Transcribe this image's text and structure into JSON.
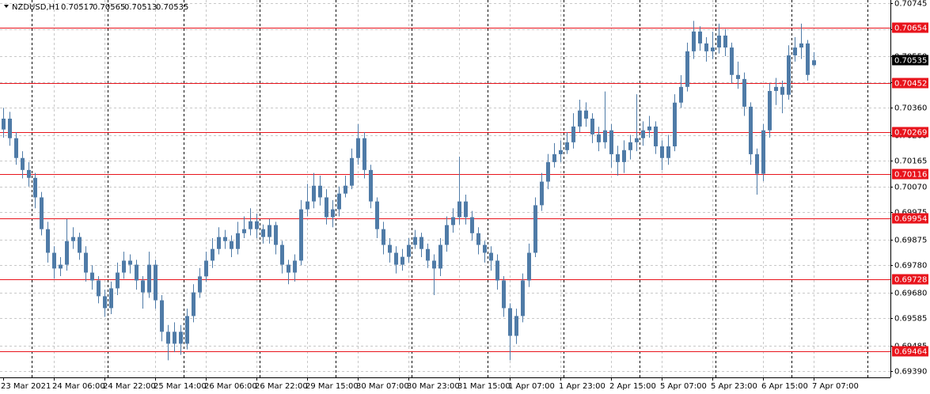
{
  "chart_data": {
    "type": "candlestick",
    "symbol": "NZDUSD,H1",
    "color": "#4f7ba7",
    "level_color": "#e8141c",
    "current_price": 0.70535,
    "ylim": [
      0.69367,
      0.70757
    ],
    "yticks": [
      {
        "value": 0.70745,
        "label": "0.70745"
      },
      {
        "value": 0.7065,
        "label": "0.70650"
      },
      {
        "value": 0.7055,
        "label": "0.70550"
      },
      {
        "value": 0.70455,
        "label": "0.70455"
      },
      {
        "value": 0.7036,
        "label": "0.70360"
      },
      {
        "value": 0.7026,
        "label": "0.70260"
      },
      {
        "value": 0.70165,
        "label": "0.70165"
      },
      {
        "value": 0.7007,
        "label": "0.70070"
      },
      {
        "value": 0.69975,
        "label": "0.69975"
      },
      {
        "value": 0.69875,
        "label": "0.69875"
      },
      {
        "value": 0.6978,
        "label": "0.69780"
      },
      {
        "value": 0.6968,
        "label": "0.69680"
      },
      {
        "value": 0.69585,
        "label": "0.69585"
      },
      {
        "value": 0.69485,
        "label": "0.69485"
      },
      {
        "value": 0.6939,
        "label": "0.69390"
      }
    ],
    "grid": true,
    "levels": [
      0.70654,
      0.70452,
      0.70269,
      0.70116,
      0.69954,
      0.69728,
      0.69464
    ],
    "categories": [
      "23 Mar 2021",
      null,
      null,
      null,
      null,
      null,
      null,
      null,
      "24 Mar 06:00",
      null,
      null,
      null,
      null,
      null,
      null,
      null,
      "24 Mar 22:00",
      null,
      null,
      null,
      null,
      null,
      null,
      null,
      "25 Mar 14:00",
      null,
      null,
      null,
      null,
      null,
      null,
      null,
      "26 Mar 06:00",
      null,
      null,
      null,
      null,
      null,
      null,
      null,
      "26 Mar 22:00",
      null,
      null,
      null,
      null,
      null,
      null,
      null,
      "29 Mar 15:00",
      null,
      null,
      null,
      null,
      null,
      null,
      null,
      "30 Mar 07:00",
      null,
      null,
      null,
      null,
      null,
      null,
      null,
      "30 Mar 23:00",
      null,
      null,
      null,
      null,
      null,
      null,
      null,
      "31 Mar 15:00",
      null,
      null,
      null,
      null,
      null,
      null,
      null,
      "1 Apr 07:00",
      null,
      null,
      null,
      null,
      null,
      null,
      null,
      "1 Apr 23:00",
      null,
      null,
      null,
      null,
      null,
      null,
      null,
      "2 Apr 15:00",
      null,
      null,
      null,
      null,
      null,
      null,
      null,
      "5 Apr 07:00",
      null,
      null,
      null,
      null,
      null,
      null,
      null,
      "5 Apr 23:00",
      null,
      null,
      null,
      null,
      null,
      null,
      null,
      "6 Apr 15:00",
      null,
      null,
      null,
      null,
      null,
      null,
      null,
      "7 Apr 07:00"
    ],
    "ohlc": [
      [
        0.7028,
        0.7036,
        0.7025,
        0.7032
      ],
      [
        0.7032,
        0.70345,
        0.7022,
        0.70248
      ],
      [
        0.70248,
        0.7027,
        0.7015,
        0.70175
      ],
      [
        0.70175,
        0.702,
        0.701,
        0.70131
      ],
      [
        0.70131,
        0.7016,
        0.7007,
        0.70102
      ],
      [
        0.70102,
        0.7012,
        0.6999,
        0.7003
      ],
      [
        0.7003,
        0.7005,
        0.6989,
        0.69913
      ],
      [
        0.69913,
        0.6994,
        0.6979,
        0.69826
      ],
      [
        0.69826,
        0.6985,
        0.6973,
        0.69768
      ],
      [
        0.69768,
        0.6981,
        0.6974,
        0.69782
      ],
      [
        0.69782,
        0.6995,
        0.6976,
        0.69869
      ],
      [
        0.69869,
        0.6992,
        0.6984,
        0.69884
      ],
      [
        0.69884,
        0.699,
        0.698,
        0.69826
      ],
      [
        0.69826,
        0.6985,
        0.6972,
        0.69753
      ],
      [
        0.69753,
        0.6978,
        0.6969,
        0.69724
      ],
      [
        0.69724,
        0.6974,
        0.6964,
        0.69666
      ],
      [
        0.69666,
        0.6969,
        0.6959,
        0.69622
      ],
      [
        0.69622,
        0.6972,
        0.696,
        0.69695
      ],
      [
        0.69695,
        0.6979,
        0.6967,
        0.69753
      ],
      [
        0.69753,
        0.6983,
        0.6973,
        0.69797
      ],
      [
        0.69797,
        0.6982,
        0.6975,
        0.69782
      ],
      [
        0.69782,
        0.698,
        0.6969,
        0.69724
      ],
      [
        0.69724,
        0.6974,
        0.6962,
        0.6968
      ],
      [
        0.6968,
        0.6983,
        0.6966,
        0.69782
      ],
      [
        0.69782,
        0.698,
        0.6962,
        0.69651
      ],
      [
        0.69651,
        0.6967,
        0.695,
        0.69535
      ],
      [
        0.69535,
        0.6956,
        0.6943,
        0.69491
      ],
      [
        0.69491,
        0.6957,
        0.6946,
        0.69535
      ],
      [
        0.69535,
        0.6956,
        0.6945,
        0.69491
      ],
      [
        0.69491,
        0.6962,
        0.6947,
        0.69593
      ],
      [
        0.69593,
        0.6971,
        0.6957,
        0.6968
      ],
      [
        0.6968,
        0.6977,
        0.6966,
        0.69739
      ],
      [
        0.69739,
        0.6983,
        0.6972,
        0.69797
      ],
      [
        0.69797,
        0.6988,
        0.6977,
        0.6984
      ],
      [
        0.6984,
        0.6992,
        0.6982,
        0.69884
      ],
      [
        0.69884,
        0.6991,
        0.6984,
        0.69869
      ],
      [
        0.69869,
        0.6989,
        0.6981,
        0.6984
      ],
      [
        0.6984,
        0.6994,
        0.6982,
        0.69898
      ],
      [
        0.69898,
        0.6996,
        0.6988,
        0.69913
      ],
      [
        0.69913,
        0.6999,
        0.6989,
        0.69942
      ],
      [
        0.69942,
        0.6997,
        0.6988,
        0.69913
      ],
      [
        0.69913,
        0.6993,
        0.6986,
        0.69884
      ],
      [
        0.69884,
        0.6995,
        0.6986,
        0.69928
      ],
      [
        0.69928,
        0.6994,
        0.6982,
        0.69855
      ],
      [
        0.69855,
        0.6987,
        0.6975,
        0.69782
      ],
      [
        0.69782,
        0.698,
        0.6971,
        0.69753
      ],
      [
        0.69753,
        0.6982,
        0.6972,
        0.69797
      ],
      [
        0.69797,
        0.7002,
        0.6978,
        0.69986
      ],
      [
        0.69986,
        0.7008,
        0.6996,
        0.70015
      ],
      [
        0.70015,
        0.7012,
        0.6999,
        0.70073
      ],
      [
        0.70073,
        0.7011,
        0.7,
        0.7003
      ],
      [
        0.7003,
        0.7006,
        0.6993,
        0.69957
      ],
      [
        0.69957,
        0.7002,
        0.6992,
        0.69986
      ],
      [
        0.69986,
        0.7007,
        0.6996,
        0.70044
      ],
      [
        0.70044,
        0.7011,
        0.7003,
        0.70073
      ],
      [
        0.70073,
        0.7021,
        0.7006,
        0.70175
      ],
      [
        0.70175,
        0.703,
        0.7015,
        0.70248
      ],
      [
        0.70248,
        0.7027,
        0.701,
        0.70131
      ],
      [
        0.70131,
        0.7015,
        0.6999,
        0.70015
      ],
      [
        0.70015,
        0.7003,
        0.6988,
        0.69913
      ],
      [
        0.69913,
        0.6994,
        0.6982,
        0.69855
      ],
      [
        0.69855,
        0.6988,
        0.6979,
        0.69826
      ],
      [
        0.69826,
        0.6985,
        0.6975,
        0.69782
      ],
      [
        0.69782,
        0.6984,
        0.6976,
        0.69811
      ],
      [
        0.69811,
        0.6988,
        0.6979,
        0.69855
      ],
      [
        0.69855,
        0.6991,
        0.6984,
        0.69884
      ],
      [
        0.69884,
        0.699,
        0.6981,
        0.6984
      ],
      [
        0.6984,
        0.6986,
        0.6977,
        0.69797
      ],
      [
        0.69797,
        0.6982,
        0.6967,
        0.69768
      ],
      [
        0.69768,
        0.6988,
        0.6974,
        0.69855
      ],
      [
        0.69855,
        0.6996,
        0.6983,
        0.69928
      ],
      [
        0.69928,
        0.6999,
        0.699,
        0.69957
      ],
      [
        0.69957,
        0.7018,
        0.6993,
        0.70015
      ],
      [
        0.70015,
        0.7004,
        0.6993,
        0.69957
      ],
      [
        0.69957,
        0.6998,
        0.6987,
        0.69898
      ],
      [
        0.69898,
        0.6992,
        0.6982,
        0.69855
      ],
      [
        0.69855,
        0.6987,
        0.6979,
        0.69826
      ],
      [
        0.69826,
        0.6985,
        0.6976,
        0.69797
      ],
      [
        0.69797,
        0.6982,
        0.6969,
        0.69724
      ],
      [
        0.69724,
        0.6974,
        0.6959,
        0.69622
      ],
      [
        0.69622,
        0.6964,
        0.6943,
        0.6952
      ],
      [
        0.6952,
        0.6962,
        0.6949,
        0.69593
      ],
      [
        0.69593,
        0.6975,
        0.6957,
        0.69724
      ],
      [
        0.69724,
        0.6986,
        0.697,
        0.69826
      ],
      [
        0.69826,
        0.7003,
        0.6981,
        0.70001
      ],
      [
        0.70001,
        0.7012,
        0.6998,
        0.70088
      ],
      [
        0.70088,
        0.7019,
        0.7006,
        0.7016
      ],
      [
        0.7016,
        0.7023,
        0.7014,
        0.70189
      ],
      [
        0.70189,
        0.7024,
        0.7016,
        0.70204
      ],
      [
        0.70204,
        0.7027,
        0.7019,
        0.70233
      ],
      [
        0.70233,
        0.7034,
        0.7021,
        0.70291
      ],
      [
        0.70291,
        0.7039,
        0.7027,
        0.7035
      ],
      [
        0.7035,
        0.7038,
        0.7029,
        0.7032
      ],
      [
        0.7032,
        0.7034,
        0.7023,
        0.70262
      ],
      [
        0.70262,
        0.7029,
        0.702,
        0.70233
      ],
      [
        0.70233,
        0.7042,
        0.7021,
        0.70277
      ],
      [
        0.70277,
        0.703,
        0.7014,
        0.70189
      ],
      [
        0.70189,
        0.7022,
        0.7011,
        0.7016
      ],
      [
        0.7016,
        0.7024,
        0.7012,
        0.70204
      ],
      [
        0.70204,
        0.7026,
        0.7017,
        0.70233
      ],
      [
        0.70233,
        0.7041,
        0.702,
        0.70248
      ],
      [
        0.70248,
        0.7031,
        0.7022,
        0.70277
      ],
      [
        0.70277,
        0.7033,
        0.7025,
        0.70291
      ],
      [
        0.70291,
        0.7031,
        0.7019,
        0.70218
      ],
      [
        0.70218,
        0.7024,
        0.7013,
        0.70175
      ],
      [
        0.70175,
        0.7026,
        0.7015,
        0.70218
      ],
      [
        0.70218,
        0.7041,
        0.702,
        0.70379
      ],
      [
        0.70379,
        0.7048,
        0.7036,
        0.70437
      ],
      [
        0.70437,
        0.706,
        0.7042,
        0.70568
      ],
      [
        0.70568,
        0.7068,
        0.7054,
        0.70641
      ],
      [
        0.70641,
        0.7066,
        0.7057,
        0.70597
      ],
      [
        0.70597,
        0.7062,
        0.7053,
        0.70568
      ],
      [
        0.70568,
        0.7064,
        0.7054,
        0.70582
      ],
      [
        0.70582,
        0.7067,
        0.7056,
        0.70626
      ],
      [
        0.70626,
        0.7065,
        0.7055,
        0.70582
      ],
      [
        0.70582,
        0.706,
        0.7045,
        0.70481
      ],
      [
        0.70481,
        0.7053,
        0.7043,
        0.70466
      ],
      [
        0.70466,
        0.7049,
        0.7033,
        0.70364
      ],
      [
        0.70364,
        0.7038,
        0.7015,
        0.70189
      ],
      [
        0.70189,
        0.7021,
        0.7004,
        0.70117
      ],
      [
        0.70117,
        0.703,
        0.7009,
        0.70277
      ],
      [
        0.70277,
        0.7045,
        0.7025,
        0.70422
      ],
      [
        0.70422,
        0.7047,
        0.7037,
        0.70437
      ],
      [
        0.70437,
        0.7046,
        0.7034,
        0.70408
      ],
      [
        0.70408,
        0.7059,
        0.7039,
        0.70553
      ],
      [
        0.70553,
        0.7062,
        0.7053,
        0.70582
      ],
      [
        0.70582,
        0.7067,
        0.7054,
        0.70597
      ],
      [
        0.70597,
        0.7061,
        0.7046,
        0.70481
      ],
      [
        0.70517,
        0.70565,
        0.70513,
        0.70535
      ]
    ]
  }
}
